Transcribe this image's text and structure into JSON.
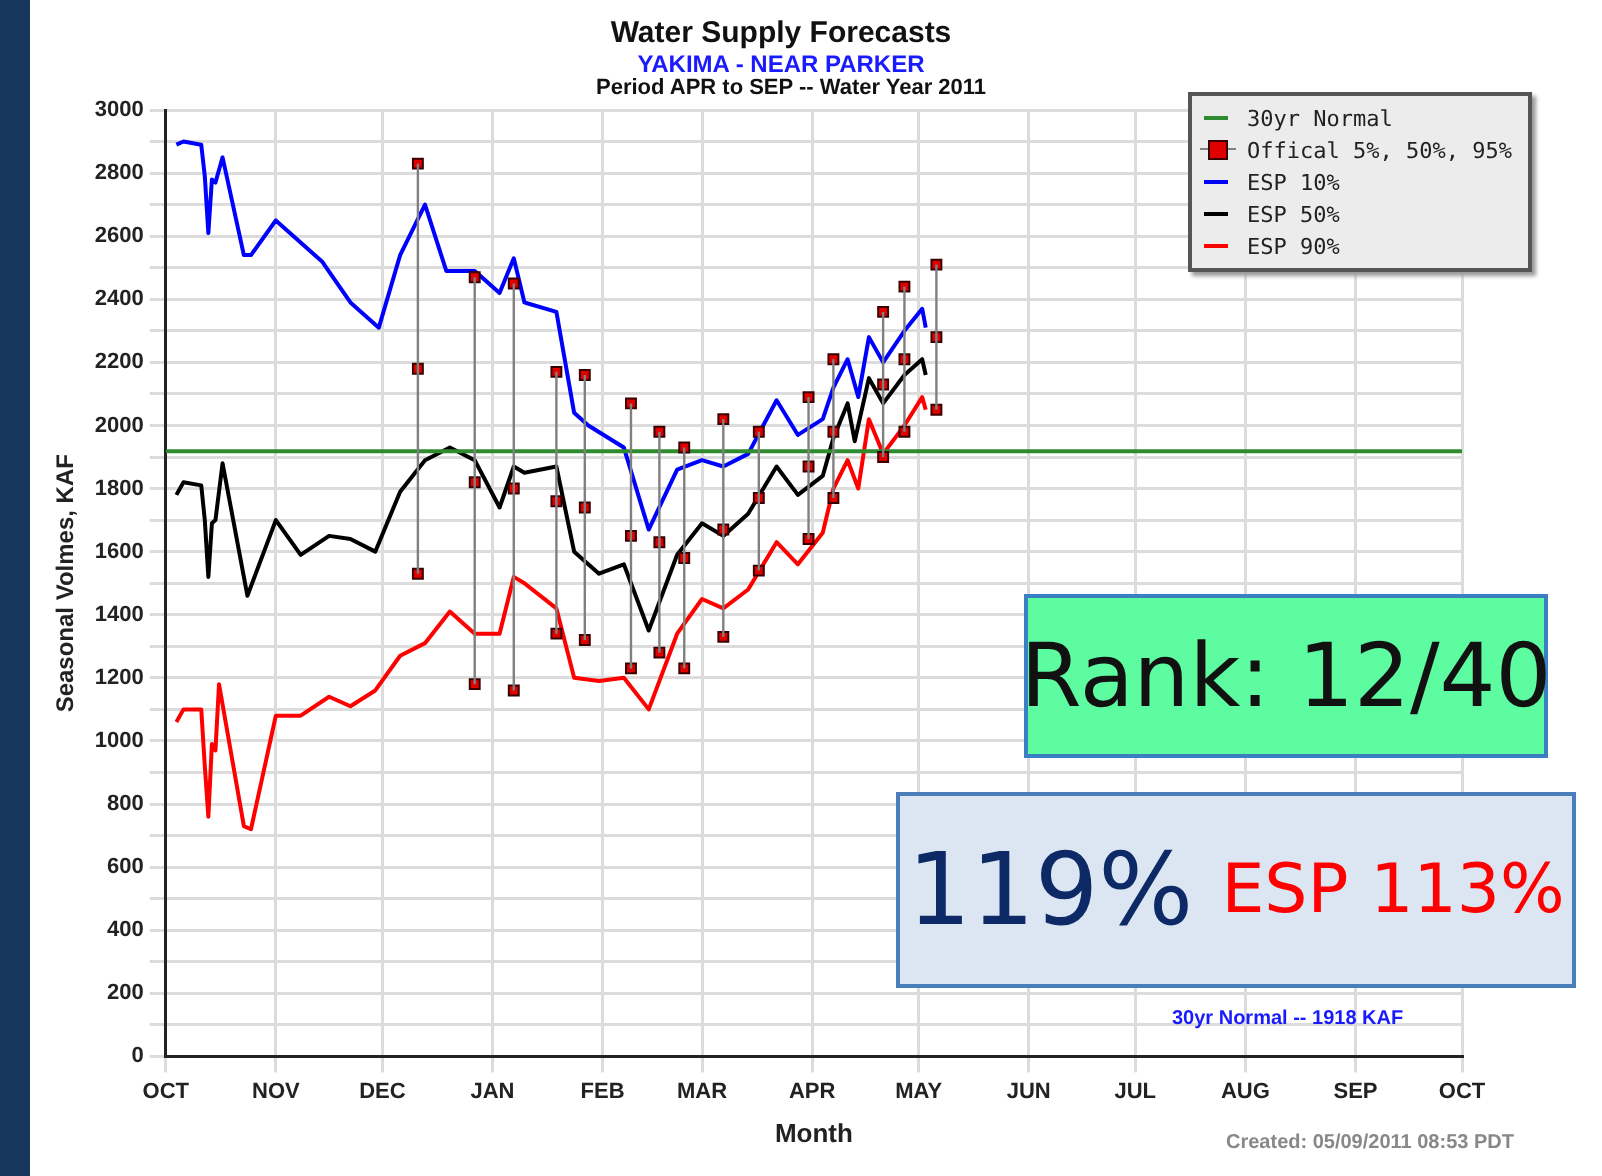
{
  "chart_data": {
    "type": "line",
    "title": "Water Supply Forecasts",
    "subtitle": "YAKIMA - NEAR PARKER",
    "xlabel": "Month",
    "ylabel": "Seasonal Volmes, KAF",
    "annotations": [
      "Period  APR to SEP  -- Water Year 2011",
      "Rank: 12/40",
      "119%",
      "ESP 113%",
      "30yr Normal -- 1918 KAF",
      "Created: 05/09/2011 08:53 PDT"
    ],
    "xlim": [
      "2010-10-01",
      "2011-10-01"
    ],
    "xticks": [
      {
        "value": "2010-10-01",
        "label": "OCT"
      },
      {
        "value": "2010-11-01",
        "label": "NOV"
      },
      {
        "value": "2010-12-01",
        "label": "DEC"
      },
      {
        "value": "2011-01-01",
        "label": "JAN"
      },
      {
        "value": "2011-02-01",
        "label": "FEB"
      },
      {
        "value": "2011-03-01",
        "label": "MAR"
      },
      {
        "value": "2011-04-01",
        "label": "APR"
      },
      {
        "value": "2011-05-01",
        "label": "MAY"
      },
      {
        "value": "2011-06-01",
        "label": "JUN"
      },
      {
        "value": "2011-07-01",
        "label": "JUL"
      },
      {
        "value": "2011-08-01",
        "label": "AUG"
      },
      {
        "value": "2011-09-01",
        "label": "SEP"
      },
      {
        "value": "2011-10-01",
        "label": "OCT"
      }
    ],
    "ylim": [
      0,
      3000
    ],
    "yticks": [
      0,
      {
        "value": 100,
        "label": null
      },
      200,
      {
        "value": 300,
        "label": null
      },
      400,
      {
        "value": 500,
        "label": null
      },
      600,
      {
        "value": 700,
        "label": null
      },
      800,
      {
        "value": 900,
        "label": null
      },
      1000,
      {
        "value": 1100,
        "label": null
      },
      1200,
      {
        "value": 1300,
        "label": null
      },
      1400,
      {
        "value": 1500,
        "label": null
      },
      1600,
      {
        "value": 1700,
        "label": null
      },
      1800,
      {
        "value": 1900,
        "label": null
      },
      2000,
      {
        "value": 2100,
        "label": null
      },
      2200,
      {
        "value": 2300,
        "label": null
      },
      2400,
      {
        "value": 2500,
        "label": null
      },
      2600,
      {
        "value": 2700,
        "label": null
      },
      2800,
      {
        "value": 2900,
        "label": null
      },
      3000
    ],
    "grid": true,
    "legend": "top right",
    "marker": "none",
    "line_style": "solid",
    "series": [
      {
        "name": "30yr Normal",
        "type": "line",
        "color": "#2e8b2e",
        "x": [
          "2010-10-01",
          "2011-10-01"
        ],
        "values": [
          1918,
          1918
        ]
      },
      {
        "name": "Offical 5%, 50%, 95%",
        "type": "scatter",
        "marker": "square",
        "color": "#e00000",
        "x": [
          "2010-12-11",
          "2010-12-27",
          "2011-01-07",
          "2011-01-19",
          "2011-01-27",
          "2011-02-09",
          "2011-02-17",
          "2011-02-24",
          "2011-03-07",
          "2011-03-17",
          "2011-03-31",
          "2011-04-07",
          "2011-04-21",
          "2011-04-27",
          "2011-05-06"
        ],
        "values": [
          2180,
          1820,
          1800,
          1760,
          1740,
          1650,
          1630,
          1580,
          1670,
          1770,
          1870,
          1980,
          2130,
          2210,
          2280
        ],
        "errors": [
          [
            1530,
            2830
          ],
          [
            1180,
            2470
          ],
          [
            1160,
            2450
          ],
          [
            1340,
            2170
          ],
          [
            1320,
            2160
          ],
          [
            1230,
            2070
          ],
          [
            1280,
            1980
          ],
          [
            1230,
            1930
          ],
          [
            1330,
            2020
          ],
          [
            1540,
            1980
          ],
          [
            1640,
            2090
          ],
          [
            1770,
            2210
          ],
          [
            1900,
            2360
          ],
          [
            1980,
            2440
          ],
          [
            2050,
            2510
          ]
        ]
      },
      {
        "type": "scatter",
        "marker": "square",
        "color": "#e00000",
        "x": [
          "2010-12-11",
          "2010-12-27",
          "2011-01-07",
          "2011-01-19",
          "2011-01-27",
          "2011-02-09",
          "2011-02-17",
          "2011-02-24",
          "2011-03-07",
          "2011-03-17",
          "2011-03-31",
          "2011-04-07",
          "2011-04-21",
          "2011-04-27",
          "2011-05-06"
        ],
        "values": [
          2830,
          2470,
          2450,
          2170,
          2160,
          2070,
          1980,
          1930,
          2020,
          1980,
          2090,
          2210,
          2360,
          2440,
          2510
        ]
      },
      {
        "type": "scatter",
        "marker": "square",
        "color": "#e00000",
        "x": [
          "2010-12-11",
          "2010-12-27",
          "2011-01-07",
          "2011-01-19",
          "2011-01-27",
          "2011-02-09",
          "2011-02-17",
          "2011-02-24",
          "2011-03-07",
          "2011-03-17",
          "2011-03-31",
          "2011-04-07",
          "2011-04-21",
          "2011-04-27",
          "2011-05-06"
        ],
        "values": [
          1530,
          1180,
          1160,
          1340,
          1320,
          1230,
          1280,
          1230,
          1330,
          1540,
          1640,
          1770,
          1900,
          1980,
          2050
        ]
      },
      {
        "name": "ESP 10%",
        "type": "line",
        "color": "#0000ff",
        "x": [
          "2010-10-04",
          "2010-10-06",
          "2010-10-11",
          "2010-10-12",
          "2010-10-13",
          "2010-10-14",
          "2010-10-15",
          "2010-10-17",
          "2010-10-23",
          "2010-10-25",
          "2010-11-01",
          "2010-11-14",
          "2010-11-22",
          "2010-11-30",
          "2010-12-06",
          "2010-12-13",
          "2010-12-19",
          "2010-12-27",
          "2011-01-03",
          "2011-01-07",
          "2011-01-10",
          "2011-01-19",
          "2011-01-24",
          "2011-01-28",
          "2011-02-07",
          "2011-02-14",
          "2011-02-22",
          "2011-03-01",
          "2011-03-07",
          "2011-03-14",
          "2011-03-22",
          "2011-03-28",
          "2011-04-04",
          "2011-04-07",
          "2011-04-11",
          "2011-04-14",
          "2011-04-17",
          "2011-04-21",
          "2011-04-27",
          "2011-05-02",
          "2011-05-03"
        ],
        "values": [
          2890,
          2900,
          2890,
          2790,
          2610,
          2780,
          2770,
          2850,
          2540,
          2540,
          2650,
          2520,
          2390,
          2310,
          2540,
          2700,
          2490,
          2490,
          2420,
          2530,
          2390,
          2360,
          2040,
          2000,
          1930,
          1670,
          1860,
          1890,
          1870,
          1910,
          2080,
          1970,
          2020,
          2120,
          2210,
          2090,
          2280,
          2200,
          2300,
          2370,
          2310
        ]
      },
      {
        "name": "ESP 50%",
        "type": "line",
        "color": "#000000",
        "x": [
          "2010-10-04",
          "2010-10-06",
          "2010-10-11",
          "2010-10-12",
          "2010-10-13",
          "2010-10-14",
          "2010-10-15",
          "2010-10-17",
          "2010-10-24",
          "2010-11-01",
          "2010-11-08",
          "2010-11-16",
          "2010-11-22",
          "2010-11-29",
          "2010-12-06",
          "2010-12-13",
          "2010-12-20",
          "2010-12-27",
          "2011-01-03",
          "2011-01-07",
          "2011-01-10",
          "2011-01-19",
          "2011-01-24",
          "2011-01-31",
          "2011-02-07",
          "2011-02-14",
          "2011-02-22",
          "2011-03-01",
          "2011-03-07",
          "2011-03-14",
          "2011-03-22",
          "2011-03-28",
          "2011-04-04",
          "2011-04-07",
          "2011-04-11",
          "2011-04-13",
          "2011-04-17",
          "2011-04-21",
          "2011-04-27",
          "2011-05-02",
          "2011-05-03"
        ],
        "values": [
          1780,
          1820,
          1810,
          1700,
          1520,
          1690,
          1700,
          1880,
          1460,
          1700,
          1590,
          1650,
          1640,
          1600,
          1790,
          1890,
          1930,
          1890,
          1740,
          1870,
          1850,
          1870,
          1600,
          1530,
          1560,
          1350,
          1590,
          1690,
          1650,
          1720,
          1870,
          1780,
          1840,
          1960,
          2070,
          1950,
          2150,
          2070,
          2160,
          2210,
          2160
        ]
      },
      {
        "name": "ESP 90%",
        "type": "line",
        "color": "#ff0000",
        "x": [
          "2010-10-04",
          "2010-10-06",
          "2010-10-11",
          "2010-10-12",
          "2010-10-13",
          "2010-10-14",
          "2010-10-15",
          "2010-10-16",
          "2010-10-23",
          "2010-10-25",
          "2010-11-01",
          "2010-11-08",
          "2010-11-16",
          "2010-11-22",
          "2010-11-29",
          "2010-12-06",
          "2010-12-13",
          "2010-12-20",
          "2010-12-27",
          "2011-01-03",
          "2011-01-07",
          "2011-01-10",
          "2011-01-19",
          "2011-01-24",
          "2011-01-31",
          "2011-02-07",
          "2011-02-14",
          "2011-02-22",
          "2011-03-01",
          "2011-03-07",
          "2011-03-14",
          "2011-03-22",
          "2011-03-28",
          "2011-04-04",
          "2011-04-07",
          "2011-04-11",
          "2011-04-14",
          "2011-04-17",
          "2011-04-21",
          "2011-04-27",
          "2011-05-02",
          "2011-05-03"
        ],
        "values": [
          1060,
          1100,
          1100,
          920,
          760,
          990,
          970,
          1180,
          730,
          720,
          1080,
          1080,
          1140,
          1110,
          1160,
          1270,
          1310,
          1410,
          1340,
          1340,
          1520,
          1500,
          1420,
          1200,
          1190,
          1200,
          1100,
          1340,
          1450,
          1420,
          1480,
          1630,
          1560,
          1660,
          1800,
          1890,
          1800,
          2020,
          1910,
          2000,
          2090,
          2050
        ]
      }
    ]
  }
}
